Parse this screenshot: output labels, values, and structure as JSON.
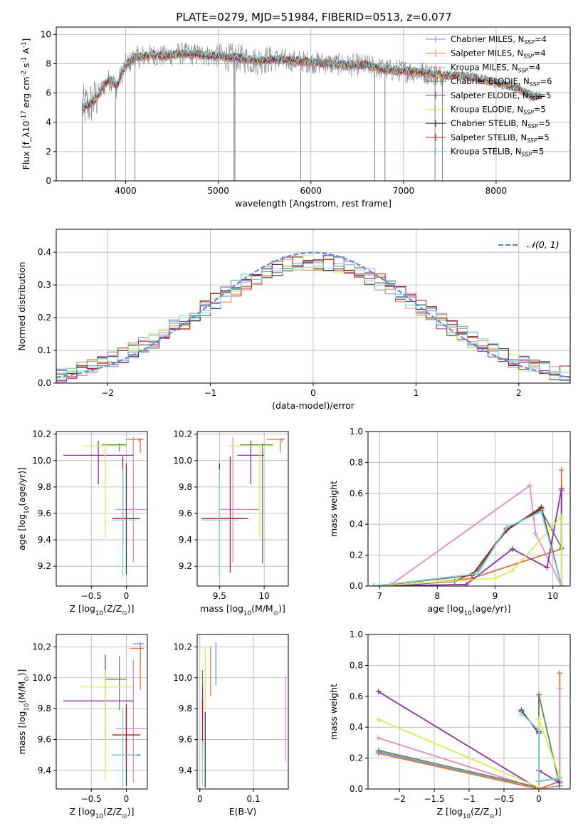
{
  "figure_title": "PLATE=0279, MJD=51984, FIBERID=0513, z=0.077",
  "colors": {
    "Chabrier MILES": "#6a8fdc",
    "Salpeter MILES": "#e07a3a",
    "Kroupa MILES": "#e58ac0",
    "Chabrier ELODIE": "#5b8a5b",
    "Salpeter ELODIE": "#8e2fa6",
    "Kroupa ELODIE": "#d9ec55",
    "Chabrier STELIB": "#3c3c3c",
    "Salpeter STELIB": "#b51d1d",
    "Kroupa STELIB": "#79d7df",
    "data": "#808080",
    "normal_curve": "#5b8bd8"
  },
  "chart_data": [
    {
      "type": "line",
      "title": "PLATE=0279, MJD=51984, FIBERID=0513, z=0.077",
      "xlabel": "wavelength [Angstrom, rest frame]",
      "ylabel": "Flux [f_λ10^-17 erg cm^-2 s^-1 A^-1]",
      "xlim": [
        3250,
        8800
      ],
      "ylim": [
        0,
        10.5
      ],
      "xticks": [
        4000,
        5000,
        6000,
        7000,
        8000
      ],
      "yticks": [
        0,
        2,
        4,
        6,
        8,
        10
      ],
      "legend": "top-right",
      "legend_entries": [
        {
          "model": "Chabrier MILES",
          "imf": "Chabrier",
          "lib": "MILES",
          "nssp": "4"
        },
        {
          "model": "Salpeter MILES",
          "imf": "Salpeter",
          "lib": "MILES",
          "nssp": "4"
        },
        {
          "model": "Kroupa MILES",
          "imf": "Kroupa",
          "lib": "MILES",
          "nssp": "4"
        },
        {
          "model": "Chabrier ELODIE",
          "imf": "Chabrier",
          "lib": "ELODIE",
          "nssp": "6"
        },
        {
          "model": "Salpeter ELODIE",
          "imf": "Salpeter",
          "lib": "ELODIE",
          "nssp": "5"
        },
        {
          "model": "Kroupa ELODIE",
          "imf": "Kroupa",
          "lib": "ELODIE",
          "nssp": "5"
        },
        {
          "model": "Chabrier STELIB",
          "imf": "Chabrier",
          "lib": "STELIB",
          "nssp": "5"
        },
        {
          "model": "Salpeter STELIB",
          "imf": "Salpeter",
          "lib": "STELIB",
          "nssp": "5"
        },
        {
          "model": "Kroupa STELIB",
          "imf": "Kroupa",
          "lib": "STELIB",
          "nssp": "5"
        }
      ],
      "continuum": {
        "x": [
          3550,
          3600,
          3650,
          3700,
          3750,
          3800,
          3850,
          3900,
          3950,
          4000,
          4100,
          4200,
          4300,
          4400,
          4500,
          4600,
          4800,
          5000,
          5200,
          5400,
          5600,
          5800,
          6000,
          6200,
          6400,
          6600,
          6800,
          7000,
          7200,
          7400,
          7600,
          7800,
          8000,
          8200,
          8400
        ],
        "y": [
          5.0,
          5.2,
          5.4,
          5.8,
          6.3,
          6.8,
          6.9,
          6.4,
          7.2,
          7.9,
          8.4,
          8.5,
          8.6,
          8.5,
          8.6,
          8.7,
          8.6,
          8.5,
          8.4,
          8.2,
          8.3,
          8.2,
          8.1,
          8.0,
          7.9,
          7.9,
          7.6,
          7.5,
          7.4,
          7.2,
          7.2,
          7.0,
          6.7,
          6.4,
          5.8
        ]
      },
      "drops": [
        {
          "x": 3530,
          "y": 0
        },
        {
          "x": 3890,
          "y": 0
        },
        {
          "x": 4100,
          "y": 0
        },
        {
          "x": 5170,
          "y": 0
        },
        {
          "x": 5180,
          "y": 0
        },
        {
          "x": 5890,
          "y": 0
        },
        {
          "x": 6690,
          "y": 0
        },
        {
          "x": 6800,
          "y": 0
        },
        {
          "x": 7340,
          "y": 0
        },
        {
          "x": 7420,
          "y": 0
        }
      ]
    },
    {
      "type": "bar",
      "xlabel": "(data-model)/error",
      "ylabel": "Normed distribution",
      "xlim": [
        -2.5,
        2.5
      ],
      "ylim": [
        0,
        0.47
      ],
      "xticks": [
        -2,
        -1,
        0,
        1,
        2
      ],
      "yticks": [
        0.0,
        0.1,
        0.2,
        0.3,
        0.4
      ],
      "legend_label": "𝒩(0, 1)",
      "legend": "top-right",
      "bin_width": 0.1
    },
    {
      "type": "scatter",
      "xlabel": "Z [log10(Z/Z⊙)]",
      "ylabel": "age  [log10(age/yr)]",
      "xlim": [
        -1.0,
        0.3
      ],
      "ylim": [
        9.05,
        10.22
      ],
      "xticks": [
        -0.5,
        0.0
      ],
      "yticks": [
        9.2,
        9.4,
        9.6,
        9.8,
        10.0,
        10.2
      ],
      "points": [
        {
          "model": "Chabrier MILES",
          "x": 0.18,
          "y": 10.16,
          "xerr": [
            0.1,
            0.05
          ],
          "yerr": [
            0.02,
            0.01
          ]
        },
        {
          "model": "Salpeter MILES",
          "x": 0.2,
          "y": 10.16,
          "xerr": [
            0.2,
            0.05
          ],
          "yerr": [
            0.1,
            0.01
          ]
        },
        {
          "model": "Kroupa MILES",
          "x": 0.1,
          "y": 9.63,
          "xerr": [
            0.25,
            0.2
          ],
          "yerr": [
            0.4,
            0.55
          ]
        },
        {
          "model": "Chabrier ELODIE",
          "x": -0.1,
          "y": 10.12,
          "xerr": [
            0.25,
            0.1
          ],
          "yerr": [
            0.05,
            0.01
          ]
        },
        {
          "model": "Salpeter ELODIE",
          "x": -0.4,
          "y": 10.04,
          "xerr": [
            0.5,
            0.5
          ],
          "yerr": [
            0.22,
            0.11
          ]
        },
        {
          "model": "Kroupa ELODIE",
          "x": -0.3,
          "y": 10.11,
          "xerr": [
            0.3,
            0.3
          ],
          "yerr": [
            0.7,
            0.02
          ]
        },
        {
          "model": "Chabrier STELIB",
          "x": 0.0,
          "y": 9.56,
          "xerr": [
            0.2,
            0.2
          ],
          "yerr": [
            0.42,
            0.42
          ]
        },
        {
          "model": "Salpeter STELIB",
          "x": -0.05,
          "y": 9.56,
          "xerr": [
            0.15,
            0.2
          ],
          "yerr": [
            0.2,
            0.47
          ]
        },
        {
          "model": "Kroupa STELIB",
          "x": -0.05,
          "y": 9.55,
          "xerr": [
            0.15,
            0.2
          ],
          "yerr": [
            0.43,
            0.38
          ]
        }
      ]
    },
    {
      "type": "scatter",
      "xlabel": "mass [log10(M/M⊙)]",
      "ylabel": "",
      "xlim": [
        9.25,
        10.27
      ],
      "ylim": [
        9.05,
        10.22
      ],
      "xticks": [
        9.5,
        10.0
      ],
      "yticks": [
        9.2,
        9.4,
        9.6,
        9.8,
        10.0,
        10.2
      ],
      "points": [
        {
          "model": "Chabrier MILES",
          "x": 10.2,
          "y": 10.16,
          "xerr": [
            0.05,
            0.03
          ],
          "yerr": [
            0.02,
            0.01
          ]
        },
        {
          "model": "Salpeter MILES",
          "x": 10.18,
          "y": 10.16,
          "xerr": [
            0.15,
            0.03
          ],
          "yerr": [
            0.1,
            0.01
          ]
        },
        {
          "model": "Kroupa MILES",
          "x": 9.65,
          "y": 9.63,
          "xerr": [
            0.15,
            0.3
          ],
          "yerr": [
            0.4,
            0.55
          ]
        },
        {
          "model": "Chabrier ELODIE",
          "x": 9.98,
          "y": 10.12,
          "xerr": [
            0.25,
            0.12
          ],
          "yerr": [
            0.9,
            0.01
          ]
        },
        {
          "model": "Salpeter ELODIE",
          "x": 9.85,
          "y": 10.04,
          "xerr": [
            0.15,
            0.15
          ],
          "yerr": [
            0.22,
            0.11
          ]
        },
        {
          "model": "Kroupa ELODIE",
          "x": 9.95,
          "y": 10.11,
          "xerr": [
            0.35,
            0.15
          ],
          "yerr": [
            0.7,
            0.02
          ]
        },
        {
          "model": "Chabrier STELIB",
          "x": 9.5,
          "y": 9.56,
          "xerr": [
            0.2,
            0.3
          ],
          "yerr": [
            0.42,
            0.42
          ]
        },
        {
          "model": "Salpeter STELIB",
          "x": 9.62,
          "y": 9.56,
          "xerr": [
            0.25,
            0.2
          ],
          "yerr": [
            0.41,
            0.47
          ]
        },
        {
          "model": "Kroupa STELIB",
          "x": 9.5,
          "y": 9.55,
          "xerr": [
            0.2,
            0.2
          ],
          "yerr": [
            0.43,
            0.38
          ]
        }
      ]
    },
    {
      "type": "line",
      "xlabel": "age  [log10(age/yr)]",
      "ylabel": "mass weight",
      "xlim": [
        6.8,
        10.3
      ],
      "ylim": [
        0,
        1.0
      ],
      "xticks": [
        7,
        8,
        9,
        10
      ],
      "yticks": [
        0.0,
        0.2,
        0.4,
        0.6,
        0.8,
        1.0
      ],
      "series": [
        {
          "model": "Chabrier MILES",
          "x": [
            6.9,
            7.6,
            8.6,
            10.15,
            10.15
          ],
          "y": [
            0.0,
            0.01,
            0.05,
            0.24,
            0.75
          ]
        },
        {
          "model": "Salpeter MILES",
          "x": [
            6.9,
            7.6,
            8.6,
            10.15,
            10.15
          ],
          "y": [
            0.0,
            0.01,
            0.05,
            0.24,
            0.75
          ]
        },
        {
          "model": "Kroupa MILES",
          "x": [
            7.0,
            7.2,
            9.6,
            9.7,
            10.15
          ],
          "y": [
            0.0,
            0.01,
            0.65,
            0.34,
            0.0
          ]
        },
        {
          "model": "Chabrier ELODIE",
          "x": [
            6.9,
            7.5,
            8.3,
            8.7,
            9.2,
            9.8,
            10.15,
            10.15
          ],
          "y": [
            0.0,
            0.01,
            0.03,
            0.1,
            0.37,
            0.49,
            0.25,
            0.62
          ]
        },
        {
          "model": "Salpeter ELODIE",
          "x": [
            6.9,
            8.5,
            9.3,
            9.9,
            10.15,
            10.15
          ],
          "y": [
            0.0,
            0.01,
            0.24,
            0.12,
            0.63,
            0.0
          ]
        },
        {
          "model": "Kroupa ELODIE",
          "x": [
            6.9,
            9.0,
            9.3,
            10.15,
            10.15
          ],
          "y": [
            0.0,
            0.05,
            0.1,
            0.45,
            0.0
          ]
        },
        {
          "model": "Chabrier STELIB",
          "x": [
            6.9,
            8.6,
            9.2,
            9.8,
            10.15
          ],
          "y": [
            0.0,
            0.07,
            0.36,
            0.51,
            0.0
          ]
        },
        {
          "model": "Salpeter STELIB",
          "x": [
            6.9,
            8.6,
            9.2,
            9.8,
            10.15
          ],
          "y": [
            0.0,
            0.07,
            0.37,
            0.5,
            0.0
          ]
        },
        {
          "model": "Kroupa STELIB",
          "x": [
            6.9,
            8.7,
            9.2,
            9.8,
            10.15
          ],
          "y": [
            0.0,
            0.08,
            0.38,
            0.48,
            0.0
          ]
        }
      ]
    },
    {
      "type": "scatter",
      "xlabel": "Z [log10(Z/Z⊙)]",
      "ylabel": "mass [log10(M/M⊙)]",
      "xlim": [
        -1.0,
        0.3
      ],
      "ylim": [
        9.28,
        10.28
      ],
      "xticks": [
        -0.5,
        0.0
      ],
      "yticks": [
        9.4,
        9.6,
        9.8,
        10.0,
        10.2
      ],
      "points": [
        {
          "model": "Chabrier MILES",
          "x": 0.2,
          "y": 10.22,
          "xerr": [
            0.1,
            0.05
          ],
          "yerr": [
            0.1,
            0.01
          ]
        },
        {
          "model": "Salpeter MILES",
          "x": 0.2,
          "y": 10.19,
          "xerr": [
            0.15,
            0.05
          ],
          "yerr": [
            0.27,
            0.01
          ]
        },
        {
          "model": "Kroupa MILES",
          "x": 0.1,
          "y": 9.67,
          "xerr": [
            0.25,
            0.2
          ],
          "yerr": [
            0.35,
            0.45
          ]
        },
        {
          "model": "Chabrier ELODIE",
          "x": -0.1,
          "y": 9.99,
          "xerr": [
            0.2,
            0.1
          ],
          "yerr": [
            0.2,
            0.15
          ]
        },
        {
          "model": "Salpeter ELODIE",
          "x": -0.3,
          "y": 9.85,
          "xerr": [
            0.6,
            0.4
          ],
          "yerr": [
            0.25,
            0.3
          ]
        },
        {
          "model": "Kroupa ELODIE",
          "x": -0.3,
          "y": 9.94,
          "xerr": [
            0.35,
            0.4
          ],
          "yerr": [
            0.6,
            0.11
          ]
        },
        {
          "model": "Chabrier STELIB",
          "x": 0.0,
          "y": 9.5,
          "xerr": [
            0.2,
            0.2
          ],
          "yerr": [
            0.2,
            0.3
          ]
        },
        {
          "model": "Salpeter STELIB",
          "x": 0.0,
          "y": 9.63,
          "xerr": [
            0.2,
            0.2
          ],
          "yerr": [
            0.2,
            0.2
          ]
        },
        {
          "model": "Kroupa STELIB",
          "x": -0.05,
          "y": 9.5,
          "xerr": [
            0.15,
            0.2
          ],
          "yerr": [
            0.21,
            0.3
          ]
        }
      ]
    },
    {
      "type": "scatter",
      "xlabel": "E(B-V)",
      "ylabel": "",
      "xlim": [
        -0.005,
        0.165
      ],
      "ylim": [
        9.28,
        10.28
      ],
      "xticks": [
        0.0,
        0.1
      ],
      "yticks": [
        9.4,
        9.6,
        9.8,
        10.0,
        10.2
      ],
      "points": [
        {
          "model": "Chabrier MILES",
          "x": 0.03,
          "y": 10.1,
          "yerr": [
            0.15,
            0.13
          ]
        },
        {
          "model": "Salpeter MILES",
          "x": 0.02,
          "y": 10.08,
          "yerr": [
            0.2,
            0.12
          ]
        },
        {
          "model": "Kroupa MILES",
          "x": 0.16,
          "y": 9.74,
          "yerr": [
            0.28,
            0.27
          ]
        },
        {
          "model": "Chabrier ELODIE",
          "x": 0.005,
          "y": 9.95,
          "yerr": [
            0.15,
            0.1
          ]
        },
        {
          "model": "Salpeter ELODIE",
          "x": 0.005,
          "y": 9.85,
          "yerr": [
            0.1,
            0.1
          ]
        },
        {
          "model": "Kroupa ELODIE",
          "x": 0.01,
          "y": 10.0,
          "yerr": [
            0.2,
            0.2
          ]
        },
        {
          "model": "Chabrier STELIB",
          "x": 0.01,
          "y": 9.54,
          "yerr": [
            0.25,
            0.24
          ]
        },
        {
          "model": "Salpeter STELIB",
          "x": 0.005,
          "y": 9.68,
          "yerr": [
            0.18,
            0.18
          ]
        },
        {
          "model": "Kroupa STELIB",
          "x": 0.005,
          "y": 9.45,
          "yerr": [
            0.15,
            0.14
          ]
        }
      ]
    },
    {
      "type": "line",
      "xlabel": "Z [log10(Z/Z⊙)]",
      "ylabel": "mass weight",
      "xlim": [
        -2.45,
        0.45
      ],
      "ylim": [
        0,
        1.0
      ],
      "xticks": [
        -2.0,
        -1.5,
        -1.0,
        -0.5,
        0.0
      ],
      "yticks": [
        0.0,
        0.2,
        0.4,
        0.6,
        0.8,
        1.0
      ],
      "series": [
        {
          "model": "Chabrier MILES",
          "x": [
            -2.3,
            0.0,
            0.3,
            0.3
          ],
          "y": [
            0.24,
            0.0,
            0.05,
            0.75
          ]
        },
        {
          "model": "Salpeter MILES",
          "x": [
            -2.3,
            0.0,
            0.3,
            0.3
          ],
          "y": [
            0.23,
            0.0,
            0.05,
            0.75
          ]
        },
        {
          "model": "Kroupa MILES",
          "x": [
            -2.3,
            0.0,
            0.3,
            0.3
          ],
          "y": [
            0.33,
            0.0,
            0.02,
            0.65
          ]
        },
        {
          "model": "Chabrier ELODIE",
          "x": [
            -2.3,
            0.0,
            0.0,
            0.3
          ],
          "y": [
            0.25,
            0.01,
            0.61,
            0.02
          ]
        },
        {
          "model": "Salpeter ELODIE",
          "x": [
            -2.3,
            0.0,
            0.0,
            0.3
          ],
          "y": [
            0.63,
            0.0,
            0.12,
            0.04
          ]
        },
        {
          "model": "Kroupa ELODIE",
          "x": [
            -2.3,
            0.0,
            0.0,
            0.3
          ],
          "y": [
            0.45,
            0.01,
            0.45,
            0.08
          ]
        },
        {
          "model": "Chabrier STELIB",
          "x": [
            -0.25,
            0.0,
            0.0,
            0.3
          ],
          "y": [
            0.51,
            0.36,
            0.05,
            0.07
          ]
        },
        {
          "model": "Salpeter STELIB",
          "x": [
            -0.25,
            0.0,
            0.0,
            0.3
          ],
          "y": [
            0.5,
            0.37,
            0.05,
            0.07
          ]
        },
        {
          "model": "Kroupa STELIB",
          "x": [
            -0.25,
            0.0,
            0.0,
            0.3
          ],
          "y": [
            0.49,
            0.38,
            0.05,
            0.07
          ]
        }
      ]
    }
  ]
}
